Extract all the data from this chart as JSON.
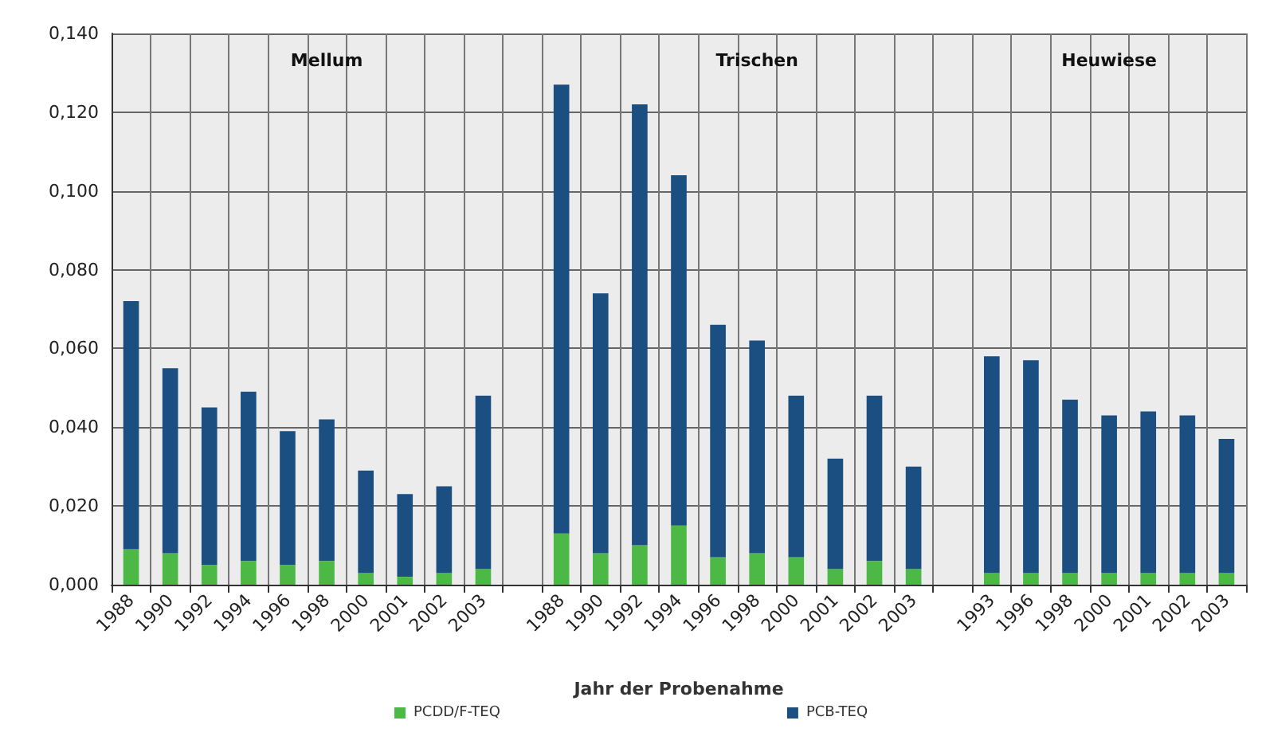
{
  "chart_data": {
    "type": "bar",
    "stacked": true,
    "xlabel": "Jahr der Probenahme",
    "categories": [
      "1988",
      "1990",
      "1992",
      "1994",
      "1996",
      "1998",
      "2000",
      "2001",
      "2002",
      "2003",
      null,
      "1988",
      "1990",
      "1992",
      "1994",
      "1996",
      "1998",
      "2000",
      "2001",
      "2002",
      "2003",
      null,
      "1993",
      "1996",
      "1998",
      "2000",
      "2001",
      "2002",
      "2003"
    ],
    "series": [
      {
        "name": "PCDD/F-TEQ",
        "color": "#4cb946",
        "values": [
          0.009,
          0.008,
          0.005,
          0.006,
          0.005,
          0.006,
          0.003,
          0.002,
          0.003,
          0.004,
          null,
          0.013,
          0.008,
          0.01,
          0.015,
          0.007,
          0.008,
          0.007,
          0.004,
          0.006,
          0.004,
          null,
          0.003,
          0.003,
          0.003,
          0.003,
          0.003,
          0.003,
          0.003
        ]
      },
      {
        "name": "PCB-TEQ",
        "color": "#1b4f82",
        "values": [
          0.063,
          0.047,
          0.04,
          0.043,
          0.034,
          0.036,
          0.026,
          0.021,
          0.022,
          0.044,
          null,
          0.114,
          0.066,
          0.112,
          0.089,
          0.059,
          0.054,
          0.041,
          0.028,
          0.042,
          0.026,
          null,
          0.055,
          0.054,
          0.044,
          0.04,
          0.041,
          0.04,
          0.034
        ]
      }
    ],
    "annotations": [
      "Mellum",
      "Trischen",
      "Heuwiese"
    ],
    "ylim": [
      0,
      0.14
    ],
    "yticks": [
      {
        "value": 0,
        "label": "0,000"
      },
      {
        "value": 0.02,
        "label": "0,020"
      },
      {
        "value": 0.04,
        "label": "0,040"
      },
      {
        "value": 0.06,
        "label": "0,060"
      },
      {
        "value": 0.08,
        "label": "0,080"
      },
      {
        "value": 0.1,
        "label": "0,100"
      },
      {
        "value": 0.12,
        "label": "0,120"
      },
      {
        "value": 0.14,
        "label": "0,140"
      }
    ],
    "grid": true,
    "legend": "bottom"
  }
}
